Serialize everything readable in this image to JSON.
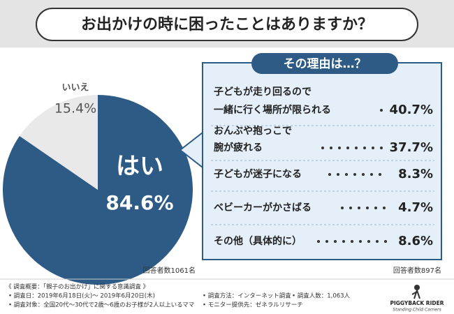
{
  "title": "お出かけの時に困ったことはありますか？",
  "chart_data": {
    "type": "pie",
    "categories": [
      "はい",
      "いいえ"
    ],
    "values": [
      84.6,
      15.4
    ],
    "value_labels": [
      "84.6%",
      "15.4%"
    ],
    "colors": [
      "#2d5b85",
      "#e9e9e9"
    ],
    "note": "回答者数1061名"
  },
  "reasons": {
    "title": "その理由は…？",
    "items": [
      {
        "lines": [
          "子どもが走り回るので",
          "一緒に行く場所が限られる"
        ],
        "value": "40.7%"
      },
      {
        "lines": [
          "おんぶや抱っこで",
          "腕が疲れる"
        ],
        "value": "37.7%"
      },
      {
        "lines": [
          "子どもが迷子になる"
        ],
        "value": "8.3%"
      },
      {
        "lines": [
          "ベビーカーがかさばる"
        ],
        "value": "4.7%"
      },
      {
        "lines": [
          "その他（具体的に）"
        ],
        "value": "8.6%"
      }
    ],
    "note": "回答者数897名"
  },
  "survey": {
    "heading": "《 調査概要：「親子のお出かけ」に関する意識調査 》",
    "items": [
      "• 調査日：2019年6月18日(火)～ 2019年6月20日(木)",
      "• 調査方法：インターネット調査",
      "• 調査人数：1,063人",
      "• 調査対象：全国20代～30代で2歳～6歳のお子様が2人以上いるママ",
      "• モニター提供先：ゼネラルリサーチ"
    ]
  },
  "logo": {
    "name": "PIGGYBACK RIDER",
    "tagline": "Standing Child Carriers"
  }
}
